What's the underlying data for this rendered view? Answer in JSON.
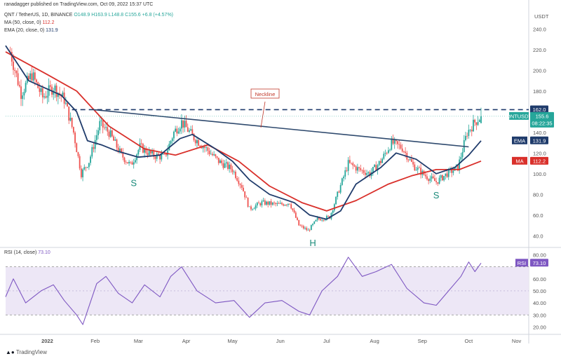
{
  "header": {
    "published": "ranadagger published on TradingView.com, Oct 09, 2022 15:37 UTC",
    "pair": "QNT / TetherUS, 1D, BINANCE",
    "ohlc": "O148.9 H163.9 L148.8 C155.6 +6.8 (+4.57%)",
    "ma": "MA (50, close, 0)",
    "ma_value": "112.2",
    "ema": "EMA (20, close, 0)",
    "ema_value": "131.9",
    "rsi": "RSI (14, close)",
    "rsi_value": "73.10"
  },
  "footer": "TradingView",
  "colors": {
    "up": "#26a69a",
    "down": "#ef5350",
    "ema": "#1f3b6b",
    "ma": "#d9302b",
    "neckline": "#2f4a6e",
    "rsi": "#7e57c2",
    "rsi_band": "#ede7f6"
  },
  "chart_data": [
    {
      "type": "candlestick",
      "symbol": "QNTUSDT",
      "y_unit": "USDT",
      "ylim": [
        30,
        260
      ],
      "y_ticks": [
        "240.0",
        "220.0",
        "200.0",
        "180.0",
        "140.0",
        "120.0",
        "100.0",
        "80.0",
        "60.0",
        "40.0"
      ],
      "x_ticks": [
        "2022",
        "Feb",
        "Mar",
        "Apr",
        "May",
        "Jun",
        "Jul",
        "Aug",
        "Sep",
        "Oct",
        "Nov"
      ],
      "close_anchors": [
        {
          "date": "2021-12-08",
          "close": 218
        },
        {
          "date": "2021-12-15",
          "close": 178
        },
        {
          "date": "2021-12-22",
          "close": 196
        },
        {
          "date": "2021-12-29",
          "close": 174
        },
        {
          "date": "2022-01-05",
          "close": 184
        },
        {
          "date": "2022-01-12",
          "close": 172
        },
        {
          "date": "2022-01-18",
          "close": 140
        },
        {
          "date": "2022-01-23",
          "close": 100
        },
        {
          "date": "2022-01-28",
          "close": 112
        },
        {
          "date": "2022-02-04",
          "close": 148
        },
        {
          "date": "2022-02-10",
          "close": 140
        },
        {
          "date": "2022-02-18",
          "close": 118
        },
        {
          "date": "2022-02-24",
          "close": 108
        },
        {
          "date": "2022-03-02",
          "close": 126
        },
        {
          "date": "2022-03-10",
          "close": 118
        },
        {
          "date": "2022-03-18",
          "close": 116
        },
        {
          "date": "2022-03-24",
          "close": 140
        },
        {
          "date": "2022-03-29",
          "close": 150
        },
        {
          "date": "2022-04-06",
          "close": 135
        },
        {
          "date": "2022-04-14",
          "close": 124
        },
        {
          "date": "2022-04-22",
          "close": 112
        },
        {
          "date": "2022-05-01",
          "close": 104
        },
        {
          "date": "2022-05-07",
          "close": 88
        },
        {
          "date": "2022-05-12",
          "close": 66
        },
        {
          "date": "2022-05-20",
          "close": 72
        },
        {
          "date": "2022-05-31",
          "close": 70
        },
        {
          "date": "2022-06-07",
          "close": 72
        },
        {
          "date": "2022-06-13",
          "close": 50
        },
        {
          "date": "2022-06-19",
          "close": 45
        },
        {
          "date": "2022-06-25",
          "close": 56
        },
        {
          "date": "2022-07-03",
          "close": 58
        },
        {
          "date": "2022-07-08",
          "close": 80
        },
        {
          "date": "2022-07-15",
          "close": 110
        },
        {
          "date": "2022-07-22",
          "close": 104
        },
        {
          "date": "2022-07-29",
          "close": 100
        },
        {
          "date": "2022-08-05",
          "close": 112
        },
        {
          "date": "2022-08-12",
          "close": 130
        },
        {
          "date": "2022-08-19",
          "close": 125
        },
        {
          "date": "2022-08-26",
          "close": 108
        },
        {
          "date": "2022-09-03",
          "close": 98
        },
        {
          "date": "2022-09-10",
          "close": 92
        },
        {
          "date": "2022-09-17",
          "close": 100
        },
        {
          "date": "2022-09-24",
          "close": 106
        },
        {
          "date": "2022-09-30",
          "close": 140
        },
        {
          "date": "2022-10-05",
          "close": 150
        },
        {
          "date": "2022-10-09",
          "close": 155.6
        }
      ],
      "ema20": {
        "name": "EMA (20, close, 0)",
        "points": [
          {
            "date": "2021-12-05",
            "value": 224
          },
          {
            "date": "2021-12-20",
            "value": 190
          },
          {
            "date": "2022-01-10",
            "value": 176
          },
          {
            "date": "2022-01-20",
            "value": 160
          },
          {
            "date": "2022-01-27",
            "value": 132
          },
          {
            "date": "2022-02-05",
            "value": 128
          },
          {
            "date": "2022-02-15",
            "value": 122
          },
          {
            "date": "2022-03-01",
            "value": 116
          },
          {
            "date": "2022-03-15",
            "value": 118
          },
          {
            "date": "2022-03-28",
            "value": 134
          },
          {
            "date": "2022-04-05",
            "value": 138
          },
          {
            "date": "2022-04-20",
            "value": 124
          },
          {
            "date": "2022-05-01",
            "value": 112
          },
          {
            "date": "2022-05-12",
            "value": 94
          },
          {
            "date": "2022-05-25",
            "value": 80
          },
          {
            "date": "2022-06-10",
            "value": 72
          },
          {
            "date": "2022-06-20",
            "value": 60
          },
          {
            "date": "2022-07-01",
            "value": 56
          },
          {
            "date": "2022-07-10",
            "value": 64
          },
          {
            "date": "2022-07-20",
            "value": 90
          },
          {
            "date": "2022-08-05",
            "value": 106
          },
          {
            "date": "2022-08-15",
            "value": 120
          },
          {
            "date": "2022-08-28",
            "value": 114
          },
          {
            "date": "2022-09-10",
            "value": 100
          },
          {
            "date": "2022-09-22",
            "value": 106
          },
          {
            "date": "2022-10-01",
            "value": 118
          },
          {
            "date": "2022-10-09",
            "value": 131.9
          }
        ]
      },
      "ma50": {
        "name": "MA (50, close, 0)",
        "points": [
          {
            "date": "2021-12-05",
            "value": 218
          },
          {
            "date": "2022-01-01",
            "value": 196
          },
          {
            "date": "2022-01-20",
            "value": 180
          },
          {
            "date": "2022-02-10",
            "value": 146
          },
          {
            "date": "2022-03-05",
            "value": 124
          },
          {
            "date": "2022-03-25",
            "value": 118
          },
          {
            "date": "2022-04-15",
            "value": 128
          },
          {
            "date": "2022-05-05",
            "value": 112
          },
          {
            "date": "2022-05-25",
            "value": 88
          },
          {
            "date": "2022-06-15",
            "value": 72
          },
          {
            "date": "2022-07-01",
            "value": 64
          },
          {
            "date": "2022-07-20",
            "value": 74
          },
          {
            "date": "2022-08-10",
            "value": 90
          },
          {
            "date": "2022-08-25",
            "value": 98
          },
          {
            "date": "2022-09-10",
            "value": 104
          },
          {
            "date": "2022-09-25",
            "value": 104
          },
          {
            "date": "2022-10-09",
            "value": 112.2
          }
        ]
      },
      "neckline": {
        "label": "Neckline",
        "from": {
          "date": "2022-01-31",
          "value": 162
        },
        "to": {
          "date": "2022-10-01",
          "value": 126
        }
      },
      "resistance": {
        "value": 162.0,
        "label": "162.0"
      },
      "price_tags": [
        {
          "label": "162.0",
          "value": 162.0,
          "color": "#1f3b6b"
        },
        {
          "label": "QNTUSDT",
          "value": 155.6,
          "color": "#26a69a",
          "price": "155.6",
          "time": "08:22:35"
        },
        {
          "label": "EMA",
          "value": 131.9,
          "color": "#1f3b6b",
          "price": "131.9"
        },
        {
          "label": "MA",
          "value": 112.2,
          "color": "#d9302b",
          "price": "112.2"
        }
      ],
      "annotations": [
        {
          "text": "S",
          "date": "2022-02-26",
          "value": 88
        },
        {
          "text": "H",
          "date": "2022-06-22",
          "value": 30
        },
        {
          "text": "S",
          "date": "2022-09-10",
          "value": 76
        }
      ]
    },
    {
      "type": "line",
      "title": "RSI (14, close)",
      "ylim": [
        15,
        82
      ],
      "y_ticks": [
        "80.00",
        "60.00",
        "50.00",
        "40.00",
        "30.00",
        "20.00"
      ],
      "bands": [
        30,
        70
      ],
      "last_value": 73.1,
      "rsi_anchors": [
        {
          "date": "2021-12-05",
          "value": 45
        },
        {
          "date": "2021-12-10",
          "value": 60
        },
        {
          "date": "2021-12-18",
          "value": 40
        },
        {
          "date": "2021-12-28",
          "value": 50
        },
        {
          "date": "2022-01-05",
          "value": 55
        },
        {
          "date": "2022-01-12",
          "value": 42
        },
        {
          "date": "2022-01-20",
          "value": 30
        },
        {
          "date": "2022-01-24",
          "value": 22
        },
        {
          "date": "2022-02-02",
          "value": 56
        },
        {
          "date": "2022-02-08",
          "value": 62
        },
        {
          "date": "2022-02-16",
          "value": 48
        },
        {
          "date": "2022-02-25",
          "value": 40
        },
        {
          "date": "2022-03-05",
          "value": 55
        },
        {
          "date": "2022-03-15",
          "value": 45
        },
        {
          "date": "2022-03-22",
          "value": 62
        },
        {
          "date": "2022-03-29",
          "value": 70
        },
        {
          "date": "2022-04-08",
          "value": 50
        },
        {
          "date": "2022-04-20",
          "value": 40
        },
        {
          "date": "2022-05-02",
          "value": 42
        },
        {
          "date": "2022-05-12",
          "value": 28
        },
        {
          "date": "2022-05-22",
          "value": 40
        },
        {
          "date": "2022-06-02",
          "value": 42
        },
        {
          "date": "2022-06-13",
          "value": 33
        },
        {
          "date": "2022-06-20",
          "value": 30
        },
        {
          "date": "2022-06-28",
          "value": 50
        },
        {
          "date": "2022-07-08",
          "value": 62
        },
        {
          "date": "2022-07-15",
          "value": 78
        },
        {
          "date": "2022-07-24",
          "value": 62
        },
        {
          "date": "2022-08-02",
          "value": 66
        },
        {
          "date": "2022-08-12",
          "value": 72
        },
        {
          "date": "2022-08-22",
          "value": 52
        },
        {
          "date": "2022-09-02",
          "value": 40
        },
        {
          "date": "2022-09-10",
          "value": 38
        },
        {
          "date": "2022-09-18",
          "value": 50
        },
        {
          "date": "2022-09-26",
          "value": 62
        },
        {
          "date": "2022-10-01",
          "value": 74
        },
        {
          "date": "2022-10-05",
          "value": 66
        },
        {
          "date": "2022-10-09",
          "value": 73.1
        }
      ]
    }
  ]
}
